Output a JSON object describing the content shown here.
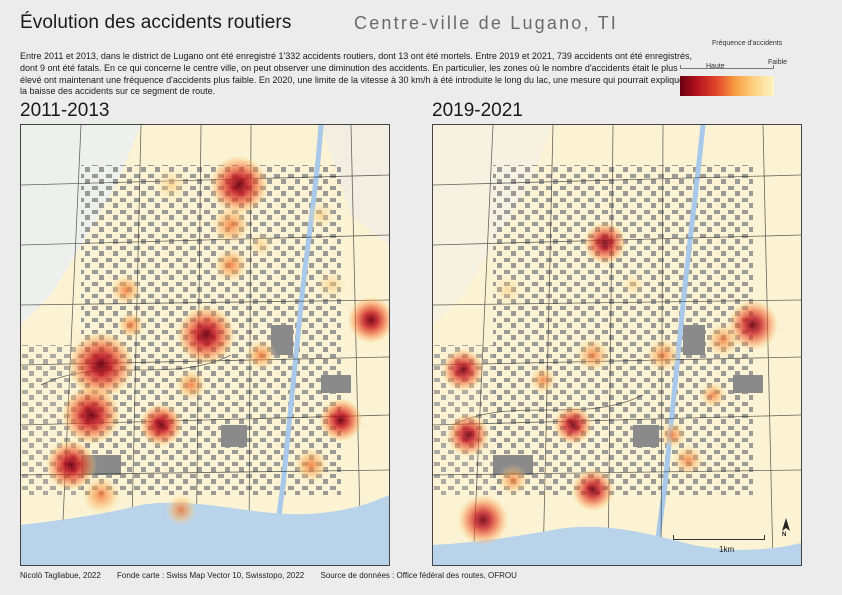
{
  "header": {
    "title": "Évolution des accidents routiers",
    "subtitle": "Centre-ville de Lugano, TI"
  },
  "intro_text": "Entre 2011 et 2013, dans le district de Lugano ont été enregistré 1'332 accidents routiers, dont 13 ont été mortels. Entre 2019 et 2021, 739 accidents ont été enregistrés, dont 9 ont été fatals. En ce qui concerne le centre ville, on peut observer une diminution des accidents. En particulier, les zones où le nombre d'accidents était le plus élevé ont maintenant une fréquence d'accidents plus faible. En 2020, une limite de la vitesse à 30 km/h à été introduite le long du lac, une mesure qui pourrait expliquer la baisse des accidents sur ce segment de route.",
  "legend": {
    "title": "Fréquence d'accidents",
    "high_label": "Haute",
    "low_label": "Faible",
    "color_low": "#fff4c6",
    "color_high": "#6b0010"
  },
  "panels": [
    {
      "label": "2011-2013"
    },
    {
      "label": "2019-2021"
    }
  ],
  "map_colors": {
    "lake": "#b9d3ea",
    "land": "#fbf3d4",
    "buildings": "#8a8a8a",
    "roads": "#2a2a2a",
    "river": "#a9c9ea"
  },
  "scale": {
    "label": "1km"
  },
  "north": {
    "label": "N"
  },
  "credits": {
    "author": "Nicolò Tagliabue, 2022",
    "basemap": "Fonde carte : Swiss Map Vector 10, Swisstopo, 2022",
    "source": "Source de données : Office fédéral des routes, OFROU"
  }
}
